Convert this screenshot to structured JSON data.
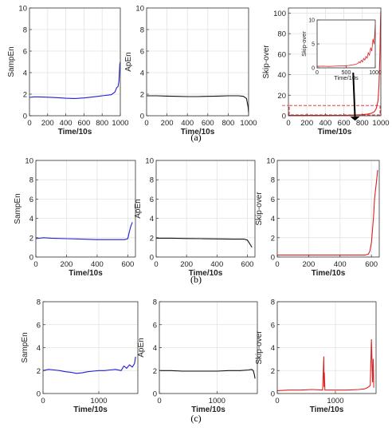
{
  "chart_data": {
    "rows": [
      {
        "label": "(a)",
        "charts": [
          {
            "type": "line",
            "ylabel": "SampEn",
            "xlabel": "Time/10s",
            "color": "#1f1fd6",
            "xlim": [
              0,
              1000
            ],
            "ylim": [
              0,
              10
            ],
            "xticks": [
              "0",
              "200",
              "400",
              "600",
              "800",
              "1000"
            ],
            "yticks": [
              "0",
              "2",
              "4",
              "6",
              "8",
              "10"
            ],
            "x": [
              0,
              50,
              100,
              200,
              300,
              400,
              500,
              600,
              700,
              800,
              900,
              940,
              960,
              975,
              985,
              995,
              1000
            ],
            "y": [
              1.7,
              1.75,
              1.75,
              1.72,
              1.68,
              1.62,
              1.6,
              1.65,
              1.75,
              1.85,
              1.95,
              2.2,
              2.6,
              2.7,
              3.2,
              4.8,
              5.0
            ]
          },
          {
            "type": "line",
            "ylabel": "ApEn",
            "xlabel": "Time/10s",
            "color": "#111111",
            "xlim": [
              0,
              1000
            ],
            "ylim": [
              0,
              10
            ],
            "xticks": [
              "0",
              "200",
              "400",
              "600",
              "800",
              "1000"
            ],
            "yticks": [
              "0",
              "2",
              "4",
              "6",
              "8",
              "10"
            ],
            "x": [
              0,
              100,
              200,
              300,
              400,
              500,
              600,
              700,
              800,
              900,
              950,
              980,
              995,
              1000
            ],
            "y": [
              1.85,
              1.85,
              1.82,
              1.8,
              1.78,
              1.78,
              1.8,
              1.82,
              1.85,
              1.85,
              1.8,
              1.6,
              0.8,
              0.3
            ]
          },
          {
            "type": "line",
            "ylabel": "Skip-over",
            "xlabel": "Time/10s",
            "color": "#e02020",
            "xlim": [
              0,
              1000
            ],
            "ylim": [
              0,
              105
            ],
            "xticks": [
              "0",
              "200",
              "400",
              "600",
              "800",
              "1000"
            ],
            "yticks": [
              "0",
              "20",
              "40",
              "60",
              "80",
              "100"
            ],
            "x": [
              0,
              200,
              400,
              600,
              700,
              800,
              850,
              900,
              930,
              950,
              970,
              980,
              990,
              995,
              1000
            ],
            "y": [
              0.3,
              0.3,
              0.3,
              0.4,
              0.6,
              1.0,
              1.5,
              2.5,
              4,
              7,
              15,
              30,
              60,
              85,
              102
            ],
            "inset": {
              "ylabel": "Skip-over",
              "xlabel": "Time/10s",
              "xlim": [
                0,
                1000
              ],
              "ylim": [
                0,
                10
              ],
              "xticks": [
                "0",
                "500",
                "1000"
              ],
              "yticks": [
                "0",
                "5",
                "10"
              ],
              "x": [
                0,
                100,
                200,
                300,
                400,
                500,
                550,
                600,
                650,
                700,
                720,
                740,
                760,
                780,
                800,
                820,
                840,
                860,
                880,
                900,
                920,
                940,
                960,
                980,
                1000
              ],
              "y": [
                0.3,
                0.35,
                0.3,
                0.35,
                0.4,
                0.45,
                0.5,
                0.6,
                0.7,
                0.9,
                1.3,
                1.0,
                1.6,
                1.2,
                2.0,
                1.6,
                2.4,
                2.0,
                3.2,
                2.6,
                4.2,
                3.5,
                6.0,
                5.0,
                9.0
              ]
            }
          }
        ]
      },
      {
        "label": "(b)",
        "charts": [
          {
            "type": "line",
            "ylabel": "SampEn",
            "xlabel": "Time/10s",
            "color": "#1f1fd6",
            "xlim": [
              0,
              650
            ],
            "ylim": [
              0,
              10
            ],
            "xticks": [
              "0",
              "200",
              "400",
              "600"
            ],
            "yticks": [
              "0",
              "2",
              "4",
              "6",
              "8",
              "10"
            ],
            "x": [
              0,
              50,
              100,
              200,
              300,
              400,
              500,
              580,
              600,
              610,
              620,
              630
            ],
            "y": [
              1.9,
              2.0,
              1.95,
              1.9,
              1.85,
              1.8,
              1.8,
              1.8,
              1.9,
              2.6,
              3.2,
              3.6
            ]
          },
          {
            "type": "line",
            "ylabel": "ApEn",
            "xlabel": "Time/10s",
            "color": "#111111",
            "xlim": [
              0,
              650
            ],
            "ylim": [
              0,
              10
            ],
            "xticks": [
              "0",
              "200",
              "400",
              "600"
            ],
            "yticks": [
              "0",
              "2",
              "4",
              "6",
              "8",
              "10"
            ],
            "x": [
              0,
              100,
              200,
              300,
              400,
              500,
              580,
              600,
              615,
              630
            ],
            "y": [
              1.95,
              1.95,
              1.92,
              1.9,
              1.88,
              1.85,
              1.85,
              1.75,
              1.4,
              1.0
            ]
          },
          {
            "type": "line",
            "ylabel": "Skip-over",
            "xlabel": "Time/10s",
            "color": "#e02020",
            "xlim": [
              0,
              650
            ],
            "ylim": [
              0,
              10
            ],
            "xticks": [
              "0",
              "200",
              "400",
              "600"
            ],
            "yticks": [
              "0",
              "2",
              "4",
              "6",
              "8",
              "10"
            ],
            "x": [
              0,
              200,
              400,
              560,
              580,
              590,
              600,
              608,
              615,
              620,
              625,
              630,
              635,
              640
            ],
            "y": [
              0.2,
              0.2,
              0.2,
              0.2,
              0.3,
              0.6,
              1.5,
              3.0,
              4.5,
              6.0,
              6.8,
              7.5,
              8.2,
              9.0
            ]
          }
        ]
      },
      {
        "label": "(c)",
        "charts": [
          {
            "type": "line",
            "ylabel": "SampEn",
            "xlabel": "Time/10s",
            "color": "#1f1fd6",
            "xlim": [
              0,
              1700
            ],
            "ylim": [
              0,
              8
            ],
            "xticks": [
              "0",
              "1000"
            ],
            "yticks": [
              "0",
              "2",
              "4",
              "6",
              "8"
            ],
            "x": [
              0,
              100,
              200,
              300,
              400,
              500,
              600,
              700,
              800,
              900,
              1000,
              1100,
              1200,
              1300,
              1400,
              1450,
              1500,
              1550,
              1600,
              1640,
              1660
            ],
            "y": [
              2.0,
              2.1,
              2.05,
              2.0,
              1.9,
              1.85,
              1.75,
              1.8,
              1.9,
              1.95,
              2.0,
              2.0,
              2.05,
              2.1,
              2.0,
              2.4,
              2.2,
              2.5,
              2.3,
              2.6,
              3.2
            ]
          },
          {
            "type": "line",
            "ylabel": "ApEn",
            "xlabel": "Time/10s",
            "color": "#111111",
            "xlim": [
              0,
              1700
            ],
            "ylim": [
              0,
              8
            ],
            "xticks": [
              "0",
              "1000"
            ],
            "yticks": [
              "0",
              "2",
              "4",
              "6",
              "8"
            ],
            "x": [
              0,
              200,
              400,
              600,
              800,
              1000,
              1200,
              1400,
              1550,
              1600,
              1630,
              1650,
              1660
            ],
            "y": [
              2.0,
              2.0,
              1.95,
              1.95,
              1.95,
              1.95,
              2.0,
              2.0,
              2.05,
              2.1,
              2.0,
              1.6,
              1.3
            ]
          },
          {
            "type": "line",
            "ylabel": "Skip-over",
            "xlabel": "Time/10s",
            "color": "#e02020",
            "xlim": [
              0,
              1700
            ],
            "ylim": [
              0,
              8
            ],
            "xticks": [
              "0",
              "1000"
            ],
            "yticks": [
              "0",
              "2",
              "4",
              "6",
              "8"
            ],
            "x": [
              0,
              200,
              400,
              600,
              780,
              800,
              805,
              810,
              820,
              830,
              1000,
              1200,
              1400,
              1500,
              1550,
              1600,
              1620,
              1640,
              1650,
              1660
            ],
            "y": [
              0.25,
              0.3,
              0.3,
              0.35,
              0.3,
              3.2,
              0.6,
              1.8,
              0.3,
              0.3,
              0.3,
              0.3,
              0.35,
              0.4,
              0.5,
              0.7,
              4.7,
              1.0,
              3.0,
              0.5
            ]
          }
        ]
      }
    ]
  }
}
